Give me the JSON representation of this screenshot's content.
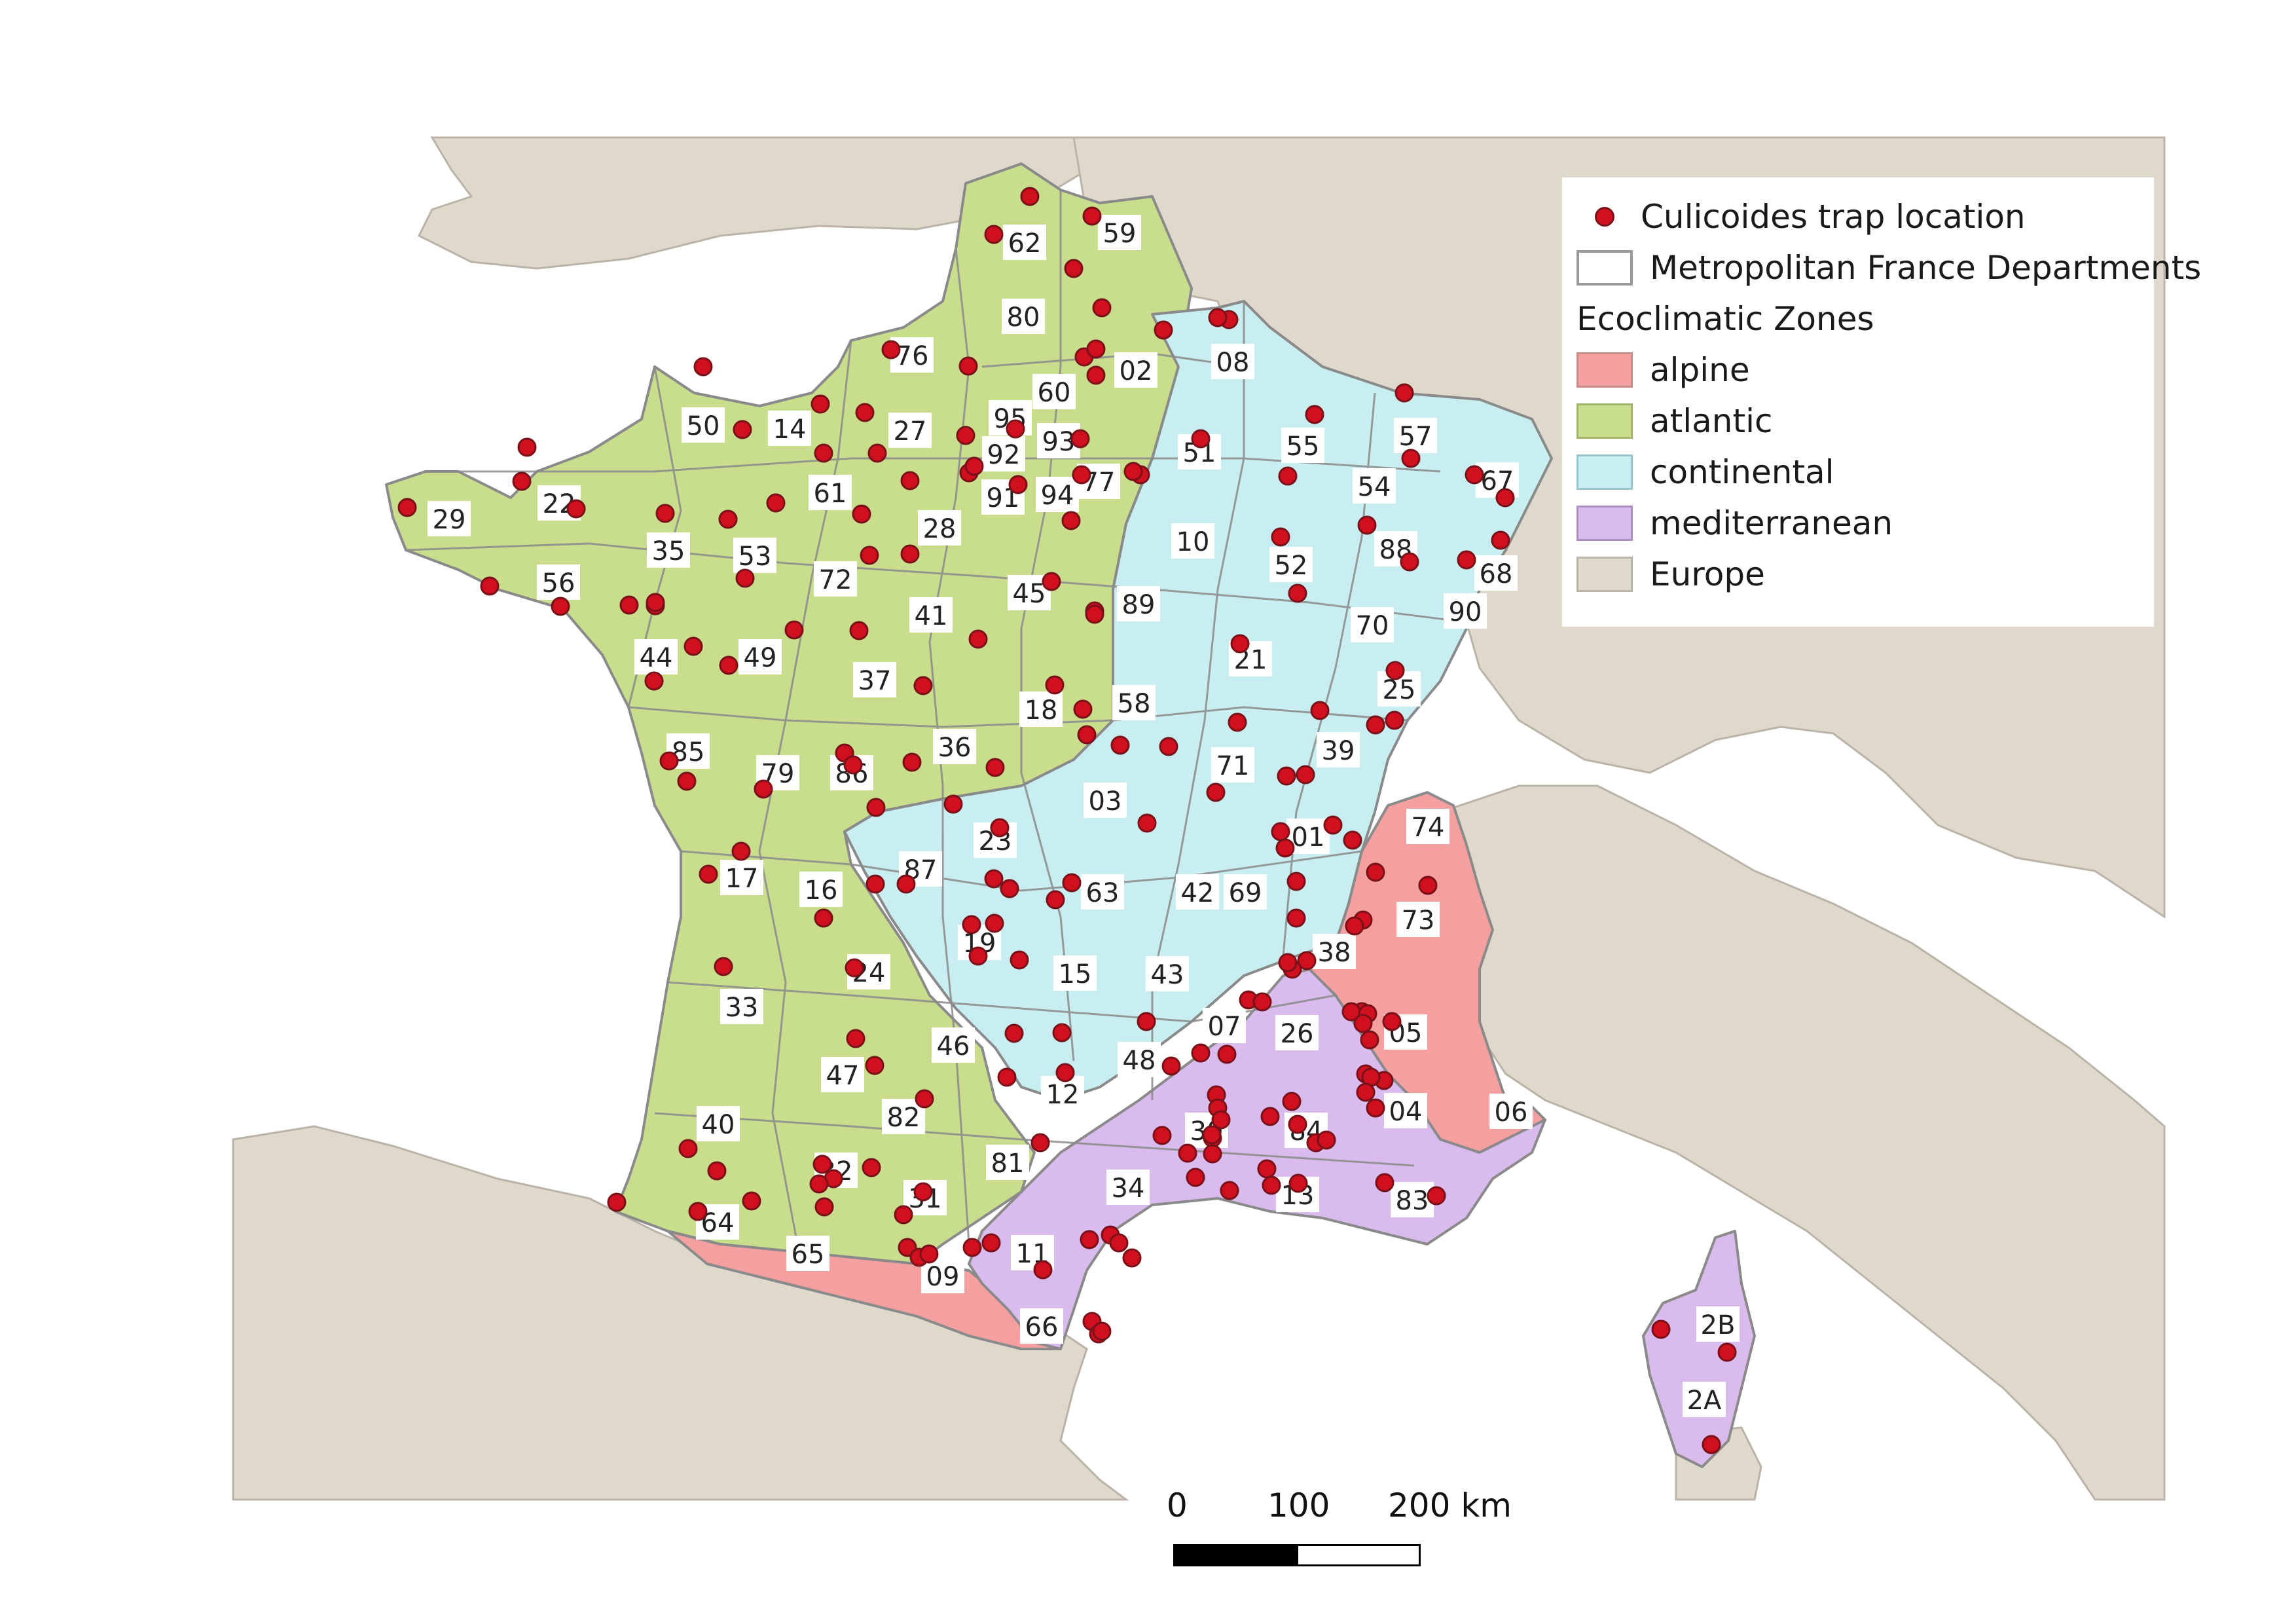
{
  "colors": {
    "sea": "#ffffff",
    "europe": "#dfd9cc",
    "atlantic": "#c8de8d",
    "continental": "#c8eef2",
    "mediterranean": "#d9bbee",
    "alpine": "#f5a0a0",
    "department_border": "#8a8a8a",
    "trap": "#d0101f"
  },
  "legend": {
    "trap_label": "Culicoides trap location",
    "departments_label": "Metropolitan France Departments",
    "zones_heading": "Ecoclimatic Zones",
    "zones": [
      {
        "label": "alpine",
        "color": "#f5a0a0"
      },
      {
        "label": "atlantic",
        "color": "#c8de8d"
      },
      {
        "label": "continental",
        "color": "#c8eef2"
      },
      {
        "label": "mediterranean",
        "color": "#d9bbee"
      },
      {
        "label": "Europe",
        "color": "#dfd9cc"
      }
    ]
  },
  "scale_bar": {
    "ticks": [
      "0",
      "100",
      "200 km"
    ]
  },
  "department_codes": [
    "59",
    "62",
    "80",
    "02",
    "76",
    "08",
    "50",
    "14",
    "27",
    "95",
    "60",
    "93",
    "55",
    "57",
    "51",
    "92",
    "94",
    "77",
    "54",
    "67",
    "22",
    "29",
    "61",
    "91",
    "28",
    "88",
    "35",
    "53",
    "10",
    "52",
    "72",
    "68",
    "90",
    "56",
    "41",
    "45",
    "89",
    "70",
    "44",
    "49",
    "37",
    "21",
    "25",
    "18",
    "58",
    "85",
    "79",
    "86",
    "36",
    "39",
    "71",
    "03",
    "23",
    "01",
    "74",
    "87",
    "17",
    "16",
    "63",
    "42",
    "69",
    "73",
    "19",
    "38",
    "24",
    "15",
    "43",
    "33",
    "46",
    "07",
    "26",
    "05",
    "47",
    "48",
    "12",
    "04",
    "06",
    "82",
    "40",
    "30",
    "84",
    "81",
    "32",
    "34",
    "13",
    "83",
    "31",
    "64",
    "65",
    "11",
    "09",
    "66",
    "2B",
    "2A"
  ]
}
